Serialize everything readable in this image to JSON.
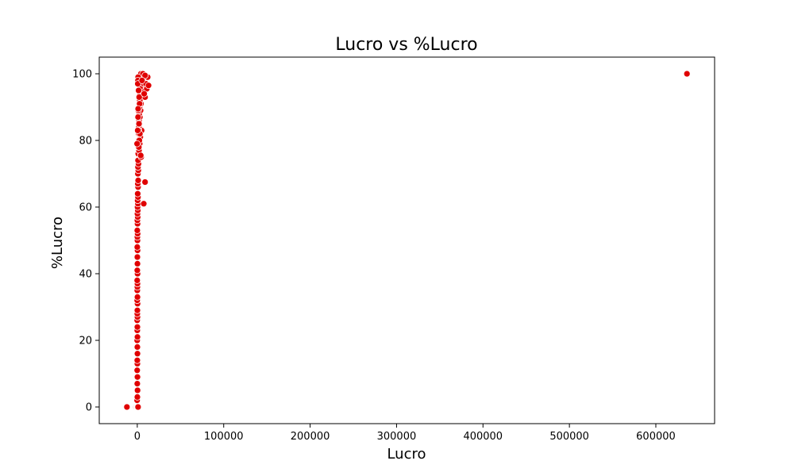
{
  "chart_data": {
    "type": "scatter",
    "title": "Lucro vs %Lucro",
    "xlabel": "Lucro",
    "ylabel": "%Lucro",
    "xlim": [
      -44000,
      668000
    ],
    "ylim": [
      -5,
      105
    ],
    "xticks": [
      0,
      100000,
      200000,
      300000,
      400000,
      500000,
      600000
    ],
    "yticks": [
      0,
      20,
      40,
      60,
      80,
      100
    ],
    "grid": false,
    "legend": "none",
    "marker_color": "#e00000",
    "marker_edge_color": "#ffffff",
    "series": [
      {
        "points": [
          [
            -12000,
            0
          ],
          [
            -1500,
            0
          ],
          [
            -800,
            0
          ],
          [
            -300,
            0
          ],
          [
            0,
            0
          ],
          [
            200,
            0
          ],
          [
            500,
            0
          ],
          [
            900,
            0
          ],
          [
            -200,
            2
          ],
          [
            100,
            3
          ],
          [
            -100,
            5
          ],
          [
            300,
            5
          ],
          [
            0,
            7
          ],
          [
            200,
            9
          ],
          [
            -100,
            11
          ],
          [
            100,
            13
          ],
          [
            0,
            14
          ],
          [
            200,
            16
          ],
          [
            100,
            18
          ],
          [
            -100,
            20
          ],
          [
            200,
            21
          ],
          [
            0,
            23
          ],
          [
            100,
            24
          ],
          [
            -100,
            26
          ],
          [
            200,
            27
          ],
          [
            0,
            28
          ],
          [
            100,
            29
          ],
          [
            300,
            31
          ],
          [
            -100,
            32
          ],
          [
            200,
            33
          ],
          [
            0,
            35
          ],
          [
            100,
            36
          ],
          [
            200,
            37
          ],
          [
            -100,
            38
          ],
          [
            300,
            40
          ],
          [
            0,
            41
          ],
          [
            200,
            43
          ],
          [
            100,
            45
          ],
          [
            300,
            47
          ],
          [
            0,
            48
          ],
          [
            200,
            50
          ],
          [
            100,
            51
          ],
          [
            400,
            52
          ],
          [
            0,
            53
          ],
          [
            300,
            55
          ],
          [
            100,
            56
          ],
          [
            500,
            57
          ],
          [
            200,
            58
          ],
          [
            600,
            59
          ],
          [
            300,
            60
          ],
          [
            700,
            61
          ],
          [
            400,
            62
          ],
          [
            800,
            63
          ],
          [
            500,
            64
          ],
          [
            900,
            66
          ],
          [
            600,
            67
          ],
          [
            1000,
            68
          ],
          [
            700,
            70
          ],
          [
            1200,
            71
          ],
          [
            800,
            72
          ],
          [
            1400,
            73
          ],
          [
            900,
            74
          ],
          [
            4500,
            75
          ],
          [
            1100,
            76
          ],
          [
            2000,
            77
          ],
          [
            1300,
            78
          ],
          [
            2800,
            79
          ],
          [
            1500,
            80
          ],
          [
            3500,
            81
          ],
          [
            1700,
            82
          ],
          [
            5000,
            83
          ],
          [
            1900,
            84
          ],
          [
            2500,
            85
          ],
          [
            2100,
            86
          ],
          [
            3000,
            87
          ],
          [
            2300,
            88
          ],
          [
            3800,
            89
          ],
          [
            2600,
            90
          ],
          [
            4200,
            91
          ],
          [
            2900,
            92
          ],
          [
            9000,
            93
          ],
          [
            3200,
            94
          ],
          [
            6000,
            95
          ],
          [
            3500,
            96
          ],
          [
            7500,
            97
          ],
          [
            3800,
            98
          ],
          [
            12000,
            99
          ],
          [
            4200,
            100
          ],
          [
            6500,
            100
          ],
          [
            9000,
            99.5
          ],
          [
            1000,
            99
          ],
          [
            800,
            98
          ],
          [
            600,
            97
          ],
          [
            1500,
            95
          ],
          [
            2200,
            93
          ],
          [
            2700,
            91
          ],
          [
            1200,
            89
          ],
          [
            900,
            87
          ],
          [
            2000,
            85
          ],
          [
            1600,
            83
          ],
          [
            3000,
            82
          ],
          [
            2400,
            80
          ],
          [
            1800,
            78
          ],
          [
            10000,
            97
          ],
          [
            11000,
            95.5
          ],
          [
            8000,
            94
          ],
          [
            13000,
            96.5
          ],
          [
            5500,
            98
          ],
          [
            9000,
            67.5
          ],
          [
            7500,
            61
          ],
          [
            4000,
            75.5
          ],
          [
            1000,
            89.5
          ],
          [
            500,
            83
          ],
          [
            -200,
            79
          ],
          [
            636000,
            100
          ]
        ]
      }
    ]
  }
}
